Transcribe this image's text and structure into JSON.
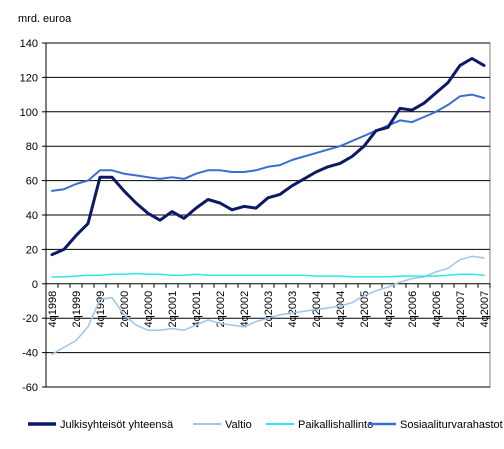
{
  "chart_data": {
    "type": "line",
    "unit_label": "mrd. euroa",
    "ylim": [
      -60,
      140
    ],
    "y_ticks": [
      -60,
      -40,
      -20,
      0,
      20,
      40,
      60,
      80,
      100,
      120,
      140
    ],
    "grid": "horizontal",
    "legend_position": "bottom",
    "x_ticks_shown": [
      "4q1998",
      "2q1999",
      "4q1999",
      "2q2000",
      "4q2000",
      "2q2001",
      "4q2001",
      "2q2002",
      "4q2002",
      "2q2003",
      "4q2003",
      "2q2004",
      "4q2004",
      "2q2005",
      "4q2005",
      "2q2006",
      "4q2006",
      "2q2007",
      "4q2007"
    ],
    "x": [
      "4q1998",
      "1q1999",
      "2q1999",
      "3q1999",
      "4q1999",
      "1q2000",
      "2q2000",
      "3q2000",
      "4q2000",
      "1q2001",
      "2q2001",
      "3q2001",
      "4q2001",
      "1q2002",
      "2q2002",
      "3q2002",
      "4q2002",
      "1q2003",
      "2q2003",
      "3q2003",
      "4q2003",
      "1q2004",
      "2q2004",
      "3q2004",
      "4q2004",
      "1q2005",
      "2q2005",
      "3q2005",
      "4q2005",
      "1q2006",
      "2q2006",
      "3q2006",
      "4q2006",
      "1q2007",
      "2q2007",
      "3q2007",
      "4q2007"
    ],
    "series": [
      {
        "name": "Julkisyhteisöt yhteensä",
        "color": "#0c1a66",
        "width": 3,
        "values": [
          17,
          20,
          28,
          35,
          62,
          62,
          54,
          47,
          41,
          37,
          42,
          38,
          44,
          49,
          47,
          43,
          45,
          44,
          50,
          52,
          57,
          61,
          65,
          68,
          70,
          74,
          80,
          89,
          91,
          102,
          101,
          105,
          111,
          117,
          127,
          131,
          127
        ]
      },
      {
        "name": "Valtio",
        "color": "#9cc6ec",
        "width": 1.5,
        "values": [
          -41,
          -37,
          -33,
          -25,
          -9,
          -8,
          -18,
          -24,
          -27,
          -27,
          -26,
          -27,
          -24,
          -21,
          -23,
          -24,
          -25,
          -22,
          -20,
          -18,
          -17,
          -16,
          -15,
          -14,
          -13,
          -11,
          -7,
          -4,
          -2,
          1,
          3,
          4,
          7,
          9,
          14,
          16,
          15
        ]
      },
      {
        "name": "Paikallishallinto",
        "color": "#2ee8e8",
        "width": 1.5,
        "values": [
          4,
          4,
          4.5,
          5,
          5,
          5.5,
          5.5,
          6,
          5.5,
          5.5,
          5,
          5,
          5.5,
          5,
          5,
          5,
          5,
          5,
          5,
          5,
          5,
          5,
          4.5,
          4.5,
          4.5,
          4,
          4,
          4,
          4,
          4.5,
          4.5,
          4.5,
          4.5,
          5,
          5.5,
          5.5,
          5
        ]
      },
      {
        "name": "Sosiaaliturvarahastot",
        "color": "#3a6fd0",
        "width": 2,
        "values": [
          54,
          55,
          58,
          60,
          66,
          66,
          64,
          63,
          62,
          61,
          62,
          61,
          64,
          66,
          66,
          65,
          65,
          66,
          68,
          69,
          72,
          74,
          76,
          78,
          80,
          83,
          86,
          89,
          92,
          95,
          94,
          97,
          100,
          104,
          109,
          110,
          108
        ]
      }
    ]
  }
}
